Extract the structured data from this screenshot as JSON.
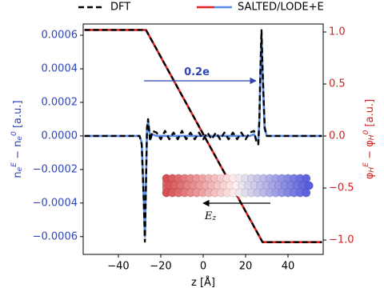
{
  "chart_data": {
    "type": "line",
    "xlabel": "z  [Å]",
    "ylabel": "n_e^E − n_e^0  [a.u.]",
    "y2label": "φ_H^E − φ_H^0  [a.u.]",
    "annotations": [
      {
        "text": "0.2e",
        "color": "#2f45b5"
      },
      {
        "text": "E_z",
        "color": "#000000"
      }
    ],
    "x": [
      -56,
      -30,
      -29,
      -28,
      -27.5,
      -27,
      -26.5,
      -26,
      -25,
      -24,
      -22,
      -20,
      -18,
      -16,
      -14,
      -12,
      -10,
      -8,
      -6,
      -4,
      -2,
      0,
      2,
      4,
      6,
      8,
      10,
      12,
      14,
      16,
      18,
      20,
      22,
      24,
      25,
      26,
      26.5,
      27,
      27.5,
      28,
      29,
      30,
      56
    ],
    "series": [
      {
        "name": "SALTED/LODE+E",
        "color": "#e02020",
        "dash": false,
        "axis": "y2",
        "values": [
          1.02,
          1.02,
          1.02,
          1.02,
          1.02,
          1.02,
          1.001,
          0.983,
          0.946,
          0.909,
          0.835,
          0.76,
          0.686,
          0.612,
          0.538,
          0.464,
          0.389,
          0.315,
          0.241,
          0.167,
          0.092,
          0.018,
          -0.056,
          -0.13,
          -0.204,
          -0.279,
          -0.353,
          -0.427,
          -0.501,
          -0.575,
          -0.65,
          -0.724,
          -0.798,
          -0.872,
          -0.909,
          -0.946,
          -0.965,
          -0.983,
          -1.002,
          -1.02,
          -1.02,
          -1.02,
          -1.02
        ]
      },
      {
        "color": "#000000",
        "dash": true,
        "axis": "y2",
        "values": [
          1.02,
          1.02,
          1.02,
          1.02,
          1.02,
          1.02,
          1.001,
          0.983,
          0.946,
          0.909,
          0.835,
          0.76,
          0.686,
          0.612,
          0.538,
          0.464,
          0.389,
          0.315,
          0.241,
          0.167,
          0.092,
          0.018,
          -0.056,
          -0.13,
          -0.204,
          -0.279,
          -0.353,
          -0.427,
          -0.501,
          -0.575,
          -0.65,
          -0.724,
          -0.798,
          -0.872,
          -0.909,
          -0.946,
          -0.965,
          -0.983,
          -1.002,
          -1.02,
          -1.02,
          -1.02,
          -1.02
        ]
      },
      {
        "color": "#5a8be6",
        "dash": false,
        "values": [
          0,
          0,
          -4e-05,
          -0.00038,
          -0.0006,
          -0.00028,
          4e-05,
          9e-05,
          -2e-05,
          1e-05,
          0,
          0,
          0,
          0,
          0,
          0,
          0,
          0,
          0,
          0,
          0,
          0,
          0,
          0,
          0,
          0,
          0,
          0,
          0,
          0,
          0,
          0,
          0,
          1e-05,
          -2e-05,
          -4e-05,
          0.0001,
          0.00038,
          0.0006,
          0.00038,
          4e-05,
          0,
          0
        ]
      },
      {
        "name": "DFT",
        "color": "#000000",
        "dash": true,
        "values": [
          0,
          0,
          -5e-05,
          -0.0004,
          -0.00063,
          -0.0003,
          5e-05,
          0.0001,
          -3e-05,
          3e-05,
          2e-05,
          -2e-05,
          3e-05,
          -2e-05,
          2e-05,
          -2e-05,
          3e-05,
          -2e-05,
          2e-05,
          -2e-05,
          2e-05,
          -2e-05,
          2e-05,
          -2e-05,
          2e-05,
          -2e-05,
          2e-05,
          -2e-05,
          2e-05,
          -2e-05,
          2e-05,
          -2e-05,
          2e-05,
          3e-05,
          -3e-05,
          -5e-05,
          0.0001,
          0.0004,
          0.00063,
          0.0004,
          5e-05,
          0,
          0
        ]
      }
    ],
    "xlim": [
      -56.6,
      56.6
    ],
    "xticks": [
      {
        "value": -40,
        "label": "−40"
      },
      {
        "value": -20,
        "label": "−20"
      },
      0,
      20,
      40
    ],
    "ylim": [
      -0.000706,
      0.000667
    ],
    "yticks": [
      {
        "value": -0.0006,
        "label": "−0.0006"
      },
      {
        "value": -0.0004,
        "label": "−0.0004"
      },
      {
        "value": -0.0002,
        "label": "−0.0002"
      },
      {
        "value": 0,
        "label": "0.0000"
      },
      {
        "value": 0.0002,
        "label": "0.0002"
      },
      {
        "value": 0.0004,
        "label": "0.0004"
      },
      {
        "value": 0.0006,
        "label": "0.0006"
      }
    ],
    "y2lim": [
      -1.138,
      1.077
    ],
    "y2ticks": [
      {
        "value": -1,
        "label": "−1.0"
      },
      {
        "value": -0.5,
        "label": "−0.5"
      },
      {
        "value": 0,
        "label": "0.0"
      },
      0.5,
      {
        "value": 1,
        "label": "1.0"
      }
    ],
    "ycolor": "#2f45b5",
    "y2color": "#d42020"
  }
}
